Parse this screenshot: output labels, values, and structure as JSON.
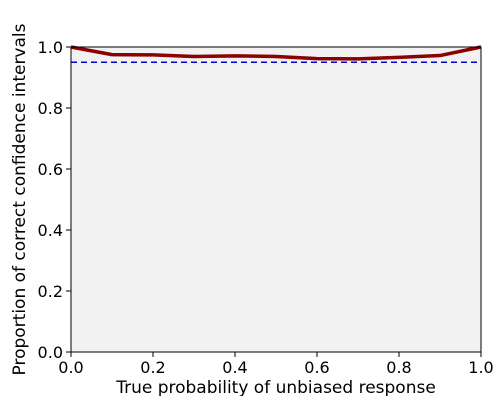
{
  "chart_data": {
    "type": "line",
    "title": "",
    "xlabel": "True probability of unbiased response",
    "ylabel": "Proportion of correct confidence intervals",
    "xlim": [
      0.0,
      1.0
    ],
    "ylim": [
      0.0,
      1.0
    ],
    "xticks": [
      0.0,
      0.2,
      0.4,
      0.6,
      0.8,
      1.0
    ],
    "yticks": [
      0.0,
      0.2,
      0.4,
      0.6,
      0.8,
      1.0
    ],
    "xtick_labels": [
      "0.0",
      "0.2",
      "0.4",
      "0.6",
      "0.8",
      "1.0"
    ],
    "ytick_labels": [
      "0.0",
      "0.2",
      "0.4",
      "0.6",
      "0.8",
      "1.0"
    ],
    "grid": false,
    "legend": "none",
    "plot_background": "#f2f2f2",
    "series": [
      {
        "color": "#8b0000",
        "style": "solid",
        "x": [
          0.0,
          0.1,
          0.2,
          0.3,
          0.4,
          0.5,
          0.6,
          0.7,
          0.8,
          0.9,
          1.0
        ],
        "y": [
          1.0,
          0.975,
          0.974,
          0.969,
          0.971,
          0.969,
          0.962,
          0.961,
          0.966,
          0.972,
          1.0
        ]
      }
    ],
    "reference_lines": [
      {
        "orientation": "horizontal",
        "y": 0.95,
        "color": "#0000cc",
        "style": "dashed"
      }
    ]
  }
}
